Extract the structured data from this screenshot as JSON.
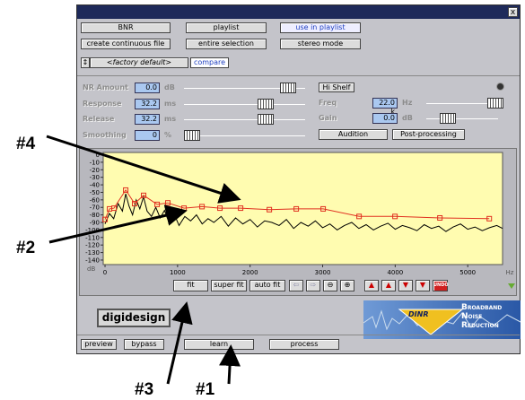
{
  "window": {
    "close": "x"
  },
  "buttons": {
    "bnr": "BNR",
    "playlist": "playlist",
    "use_in_playlist": "use in playlist",
    "create": "create continuous file",
    "entire": "entire selection",
    "stereo": "stereo mode",
    "preset": "<factory default>",
    "compare": "compare"
  },
  "controls": [
    {
      "label": "NR Amount",
      "value": "0.0",
      "unit": "dB"
    },
    {
      "label": "Response",
      "value": "32.2",
      "unit": "ms"
    },
    {
      "label": "Release",
      "value": "32.2",
      "unit": "ms"
    },
    {
      "label": "Smoothing",
      "value": "0",
      "unit": "%"
    }
  ],
  "shelf": {
    "button": "Hi Shelf",
    "freq_label": "Freq",
    "freq_value": "22.0 k",
    "freq_unit": "Hz",
    "gain_label": "Gain",
    "gain_value": "0.0",
    "gain_unit": "dB",
    "audition": "Audition",
    "post": "Post-processing"
  },
  "graph": {
    "y_unit": "dB",
    "x_unit": "Hz",
    "xlim": [
      -25,
      5480
    ],
    "ylim": [
      -146,
      3
    ],
    "yticks": [
      0,
      -10,
      -20,
      -30,
      -40,
      -50,
      -60,
      -70,
      -80,
      -90,
      -100,
      -110,
      -120,
      -130,
      -140
    ],
    "xticks": [
      0,
      1000,
      2000,
      3000,
      4000,
      5000
    ],
    "noise": {
      "color": "#000000",
      "x": [
        0,
        60,
        120,
        180,
        240,
        285,
        330,
        380,
        430,
        480,
        530,
        580,
        640,
        700,
        760,
        820,
        880,
        950,
        1020,
        1100,
        1180,
        1260,
        1340,
        1420,
        1500,
        1600,
        1700,
        1800,
        1900,
        2000,
        2100,
        2200,
        2300,
        2400,
        2500,
        2600,
        2700,
        2800,
        2900,
        3000,
        3100,
        3200,
        3300,
        3400,
        3500,
        3600,
        3700,
        3800,
        3900,
        4000,
        4100,
        4200,
        4300,
        4400,
        4500,
        4600,
        4700,
        4800,
        4900,
        5000,
        5100,
        5200,
        5300,
        5400,
        5480
      ],
      "values": [
        -92,
        -78,
        -85,
        -65,
        -75,
        -52,
        -68,
        -80,
        -60,
        -72,
        -56,
        -75,
        -82,
        -70,
        -84,
        -74,
        -90,
        -78,
        -94,
        -82,
        -88,
        -80,
        -92,
        -85,
        -90,
        -82,
        -95,
        -84,
        -92,
        -86,
        -96,
        -88,
        -90,
        -94,
        -86,
        -98,
        -90,
        -95,
        -88,
        -97,
        -92,
        -100,
        -94,
        -90,
        -98,
        -93,
        -100,
        -95,
        -91,
        -99,
        -94,
        -97,
        -101,
        -93,
        -98,
        -95,
        -102,
        -96,
        -92,
        -99,
        -96,
        -101,
        -97,
        -94,
        -98
      ]
    },
    "threshold": {
      "color": "#e03020",
      "x": [
        0,
        62,
        124,
        285,
        408,
        532,
        718,
        866,
        1089,
        1337,
        1584,
        1869,
        2265,
        2636,
        3007,
        3502,
        3997,
        4616,
        5297
      ],
      "values": [
        -86,
        -72,
        -71,
        -47,
        -65,
        -54,
        -66,
        -64,
        -71,
        -69,
        -71,
        -71,
        -73,
        -72,
        -72,
        -82,
        -82,
        -84,
        -85
      ]
    }
  },
  "toolbar": {
    "fit": "fit",
    "super_fit": "super fit",
    "auto_fit": "auto fit",
    "undo": "UNDO"
  },
  "logo": {
    "brand": "digidesign",
    "product": "DINR",
    "line1": "Broadband",
    "line2": "Noise",
    "line3": "Reduction"
  },
  "transport": {
    "preview": "preview",
    "bypass": "bypass",
    "learn": "learn",
    "process": "process"
  },
  "annotations": [
    "#4",
    "#2",
    "#3",
    "#1"
  ]
}
